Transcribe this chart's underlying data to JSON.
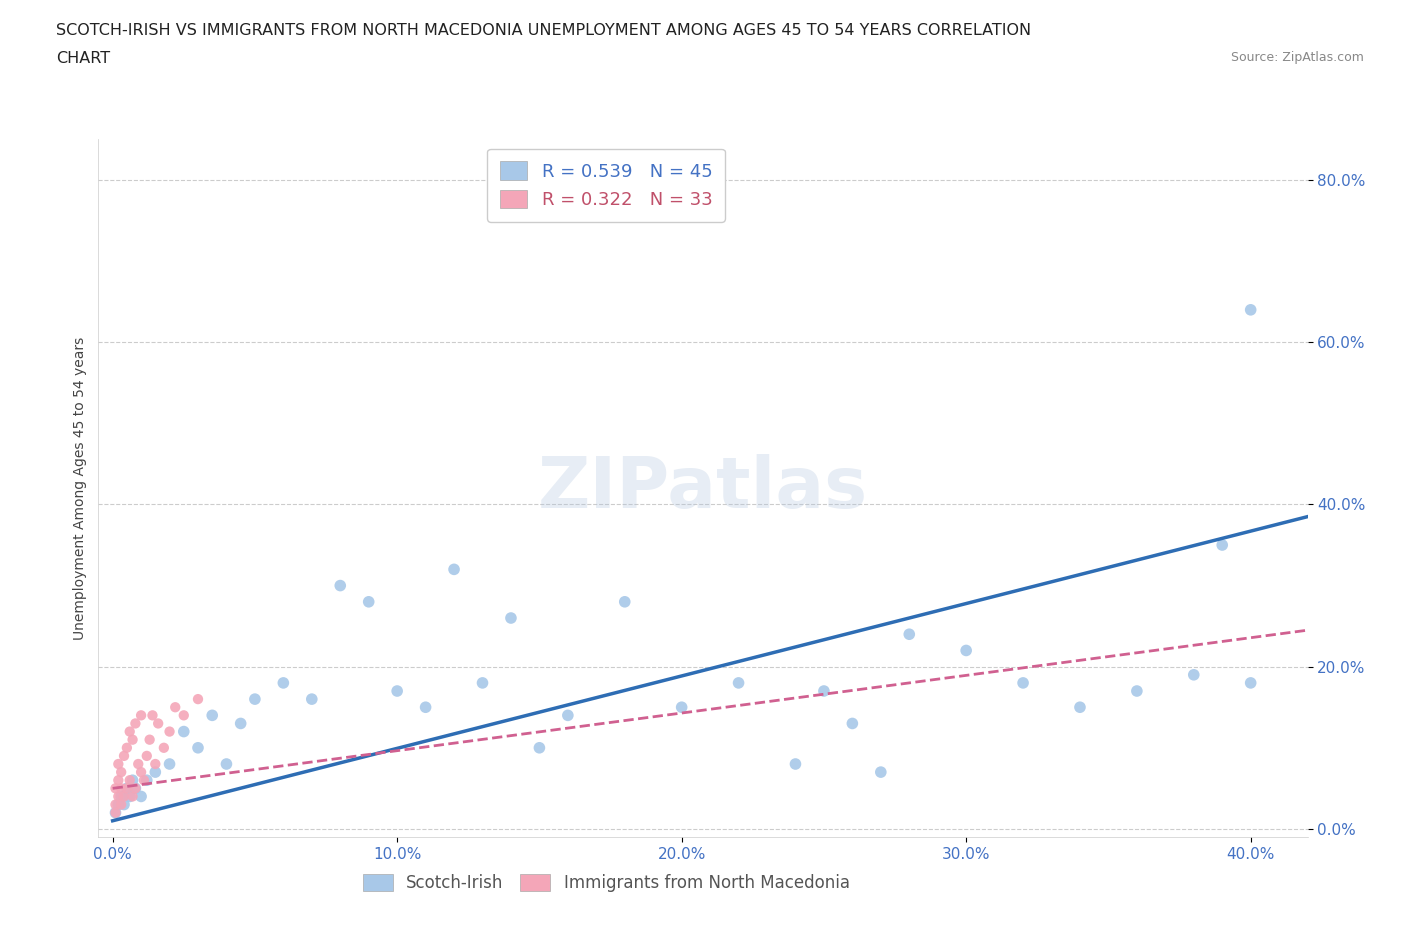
{
  "title_line1": "SCOTCH-IRISH VS IMMIGRANTS FROM NORTH MACEDONIA UNEMPLOYMENT AMONG AGES 45 TO 54 YEARS CORRELATION",
  "title_line2": "CHART",
  "source_text": "Source: ZipAtlas.com",
  "ylabel": "Unemployment Among Ages 45 to 54 years",
  "xlim": [
    -0.005,
    0.42
  ],
  "ylim": [
    -0.01,
    0.85
  ],
  "x_ticks": [
    0.0,
    0.1,
    0.2,
    0.3,
    0.4
  ],
  "x_tick_labels": [
    "0.0%",
    "10.0%",
    "20.0%",
    "30.0%",
    "40.0%"
  ],
  "y_ticks": [
    0.0,
    0.2,
    0.4,
    0.6,
    0.8
  ],
  "y_tick_labels": [
    "0.0%",
    "20.0%",
    "40.0%",
    "60.0%",
    "80.0%"
  ],
  "grid_color": "#cccccc",
  "watermark": "ZIPatlas",
  "scotch_irish_color": "#a8c8e8",
  "macedonian_color": "#f4a6b8",
  "scotch_irish_line_color": "#2e6db4",
  "macedonian_line_color": "#d06090",
  "scotch_irish_R": 0.539,
  "scotch_irish_N": 45,
  "macedonian_R": 0.322,
  "macedonian_N": 33,
  "scotch_irish_x": [
    0.001,
    0.002,
    0.003,
    0.004,
    0.005,
    0.006,
    0.007,
    0.008,
    0.01,
    0.012,
    0.015,
    0.02,
    0.025,
    0.03,
    0.035,
    0.04,
    0.045,
    0.05,
    0.06,
    0.07,
    0.08,
    0.09,
    0.1,
    0.11,
    0.12,
    0.13,
    0.14,
    0.15,
    0.16,
    0.18,
    0.2,
    0.22,
    0.24,
    0.25,
    0.26,
    0.27,
    0.28,
    0.3,
    0.32,
    0.34,
    0.36,
    0.38,
    0.39,
    0.4,
    0.4
  ],
  "scotch_irish_y": [
    0.02,
    0.03,
    0.04,
    0.03,
    0.05,
    0.04,
    0.06,
    0.05,
    0.04,
    0.06,
    0.07,
    0.08,
    0.12,
    0.1,
    0.14,
    0.08,
    0.13,
    0.16,
    0.18,
    0.16,
    0.3,
    0.28,
    0.17,
    0.15,
    0.32,
    0.18,
    0.26,
    0.1,
    0.14,
    0.28,
    0.15,
    0.18,
    0.08,
    0.17,
    0.13,
    0.07,
    0.24,
    0.22,
    0.18,
    0.15,
    0.17,
    0.19,
    0.35,
    0.18,
    0.64
  ],
  "macedonian_x": [
    0.001,
    0.001,
    0.001,
    0.002,
    0.002,
    0.002,
    0.003,
    0.003,
    0.003,
    0.004,
    0.004,
    0.005,
    0.005,
    0.006,
    0.006,
    0.007,
    0.007,
    0.008,
    0.008,
    0.009,
    0.01,
    0.01,
    0.011,
    0.012,
    0.013,
    0.014,
    0.015,
    0.016,
    0.018,
    0.02,
    0.022,
    0.025,
    0.03
  ],
  "macedonian_y": [
    0.02,
    0.03,
    0.05,
    0.04,
    0.06,
    0.08,
    0.03,
    0.05,
    0.07,
    0.04,
    0.09,
    0.05,
    0.1,
    0.06,
    0.12,
    0.04,
    0.11,
    0.05,
    0.13,
    0.08,
    0.07,
    0.14,
    0.06,
    0.09,
    0.11,
    0.14,
    0.08,
    0.13,
    0.1,
    0.12,
    0.15,
    0.14,
    0.16
  ],
  "legend_label_scotch": "Scotch-Irish",
  "legend_label_macedonian": "Immigrants from North Macedonia",
  "background_color": "#ffffff",
  "plot_bg_color": "#ffffff",
  "tick_color": "#4472c4",
  "legend_text_color_1": "#4472c4",
  "legend_text_color_2": "#c0506a"
}
